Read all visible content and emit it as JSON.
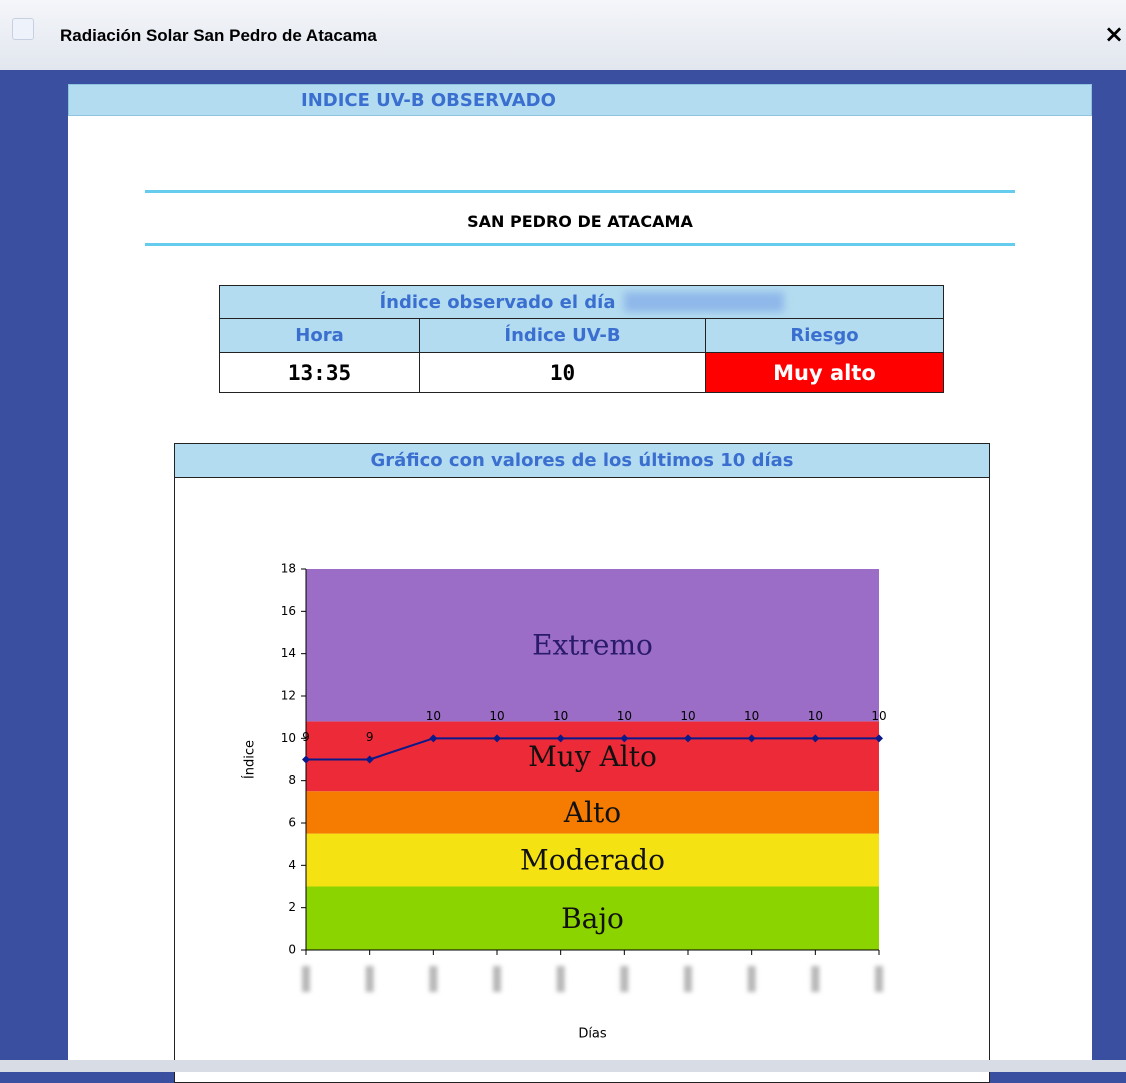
{
  "window": {
    "title": "Radiación Solar San Pedro de Atacama",
    "close": "×"
  },
  "header": {
    "title": "INDICE UV-B OBSERVADO"
  },
  "location": "SAN PEDRO DE ATACAMA",
  "table": {
    "caption": "Índice observado el día",
    "headers": [
      "Hora",
      "Índice UV-B",
      "Riesgo"
    ],
    "rows": [
      [
        "13:35",
        "10",
        "Muy alto"
      ]
    ]
  },
  "chart_panel": {
    "title": "Gráfico con valores de los últimos 10 días"
  },
  "chart_data": {
    "type": "line",
    "categories": [
      null,
      null,
      null,
      null,
      null,
      null,
      null,
      null,
      null,
      null
    ],
    "values": [
      9,
      9,
      10,
      10,
      10,
      10,
      10,
      10,
      10,
      10
    ],
    "color": "#0a1a8a",
    "ylim": [
      0,
      18
    ],
    "yticks": [
      0,
      2,
      4,
      6,
      8,
      10,
      12,
      14,
      16,
      18
    ],
    "x_label": "Días",
    "y_label": "Índice",
    "bands": [
      {
        "name": "Bajo",
        "color": "#8cd400",
        "from": 0,
        "to": 3
      },
      {
        "name": "Moderado",
        "color": "#f5e213",
        "from": 3,
        "to": 5.5
      },
      {
        "name": "Alto",
        "color": "#f57c00",
        "from": 5.5,
        "to": 7.5
      },
      {
        "name": "Muy Alto",
        "color": "#ec2a38",
        "from": 7.5,
        "to": 10.8
      },
      {
        "name": "Extremo",
        "color": "#9b6dc6",
        "from": 10.8,
        "to": 18
      }
    ]
  }
}
